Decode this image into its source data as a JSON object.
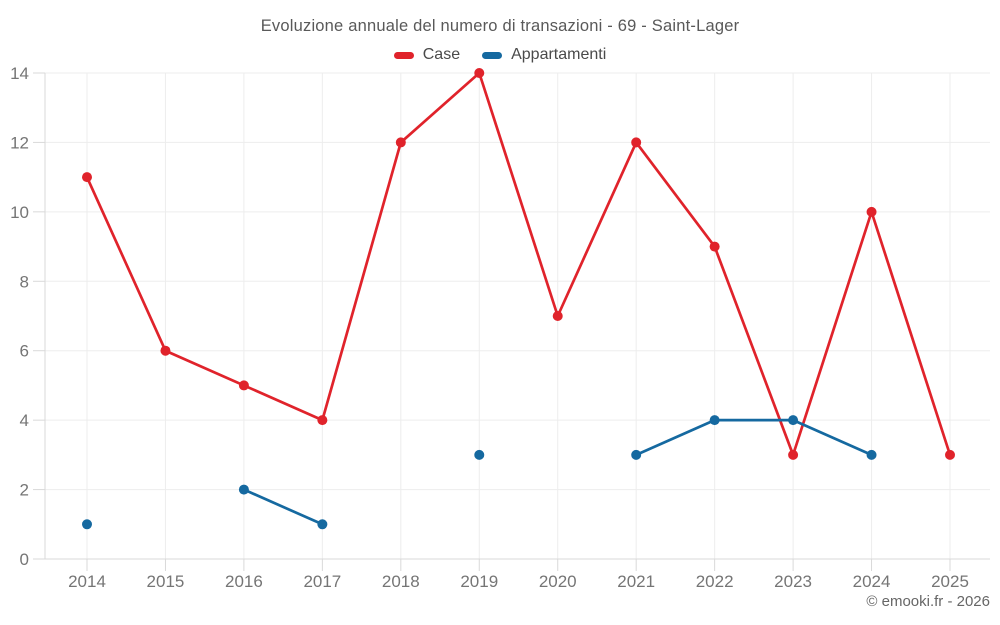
{
  "footer": {
    "text": "© emooki.fr - 2026"
  },
  "chart_data": {
    "type": "line",
    "title": "Evoluzione annuale del numero di transazioni - 69 - Saint-Lager",
    "categories": [
      "2014",
      "2015",
      "2016",
      "2017",
      "2018",
      "2019",
      "2020",
      "2021",
      "2022",
      "2023",
      "2024",
      "2025"
    ],
    "series": [
      {
        "name": "Case",
        "color": "#e0232b",
        "values": [
          11,
          6,
          5,
          4,
          12,
          14,
          7,
          12,
          9,
          3,
          10,
          3
        ]
      },
      {
        "name": "Appartamenti",
        "color": "#1569a0",
        "values": [
          1,
          null,
          2,
          1,
          null,
          3,
          null,
          3,
          4,
          4,
          3,
          null
        ]
      }
    ],
    "ylim": [
      0,
      14
    ],
    "yticks": [
      0,
      2,
      4,
      6,
      8,
      10,
      12,
      14
    ],
    "grid": true,
    "legend_position": "top",
    "colors": {
      "grid": "#ededed",
      "axis": "#d9d9d9",
      "tick_label": "#757575"
    }
  }
}
